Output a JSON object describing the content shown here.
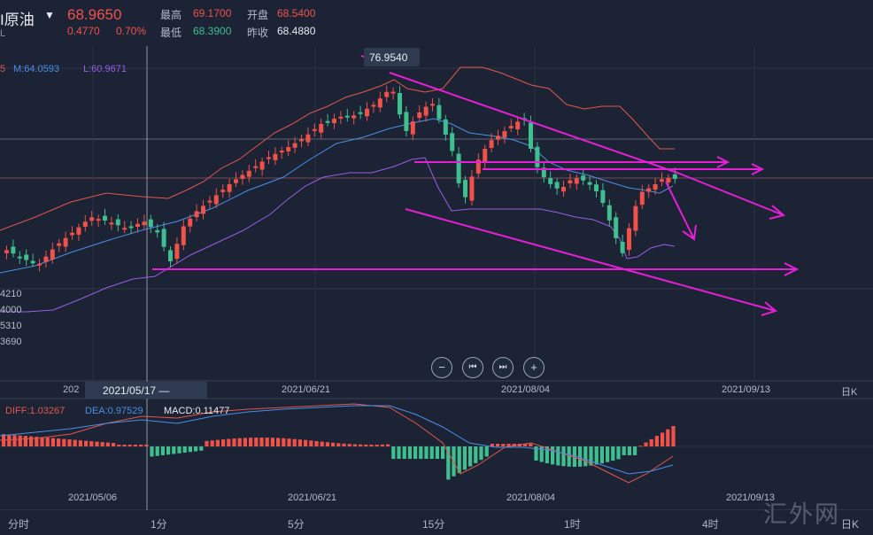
{
  "header": {
    "title": "I原油",
    "price": "68.9650",
    "sub": "L",
    "change": "0.4770",
    "change_pct": "0.70%",
    "high_label": "最高",
    "high": "69.1700",
    "open_label": "开盘",
    "open": "68.5400",
    "low_label": "最低",
    "low": "68.3900",
    "prev_label": "昨收",
    "prev": "68.4880"
  },
  "legend": {
    "u": "5",
    "m": "M:64.0593",
    "l": "L:60.9671",
    "colors": {
      "u": "#e4574c",
      "m": "#4a8fe6",
      "l": "#9b5de5"
    }
  },
  "price_annotation": "76.9540",
  "y_labels": [
    "4210",
    "4000",
    "5310",
    "3690"
  ],
  "dates": {
    "d1": "202",
    "cursor": "2021/05/17 —",
    "d2": "2021/06/21",
    "d3": "2021/08/04",
    "d4": "2021/09/13",
    "period": "日K"
  },
  "nav": {
    "zoom_out": "−",
    "prev": "⏮",
    "next": "⏭",
    "zoom_in": "+"
  },
  "macd": {
    "diff": "DIFF:1.03267",
    "dea": "DEA:0.97529",
    "macd": "MACD:0.11477",
    "colors": {
      "diff": "#e4574c",
      "dea": "#4a8fe6",
      "macd": "#e8ecf2"
    }
  },
  "bottom_dates": [
    "2021/05/06",
    "2021/06/21",
    "2021/08/04",
    "2021/09/13"
  ],
  "tabs": [
    "分时",
    "1分",
    "5分",
    "15分",
    "1时",
    "4时",
    "日K"
  ],
  "watermark": "汇外网",
  "colors": {
    "up": "#f0524a",
    "down": "#3fbf8f",
    "annot": "#e51fd6",
    "bg": "#1b2334"
  }
}
